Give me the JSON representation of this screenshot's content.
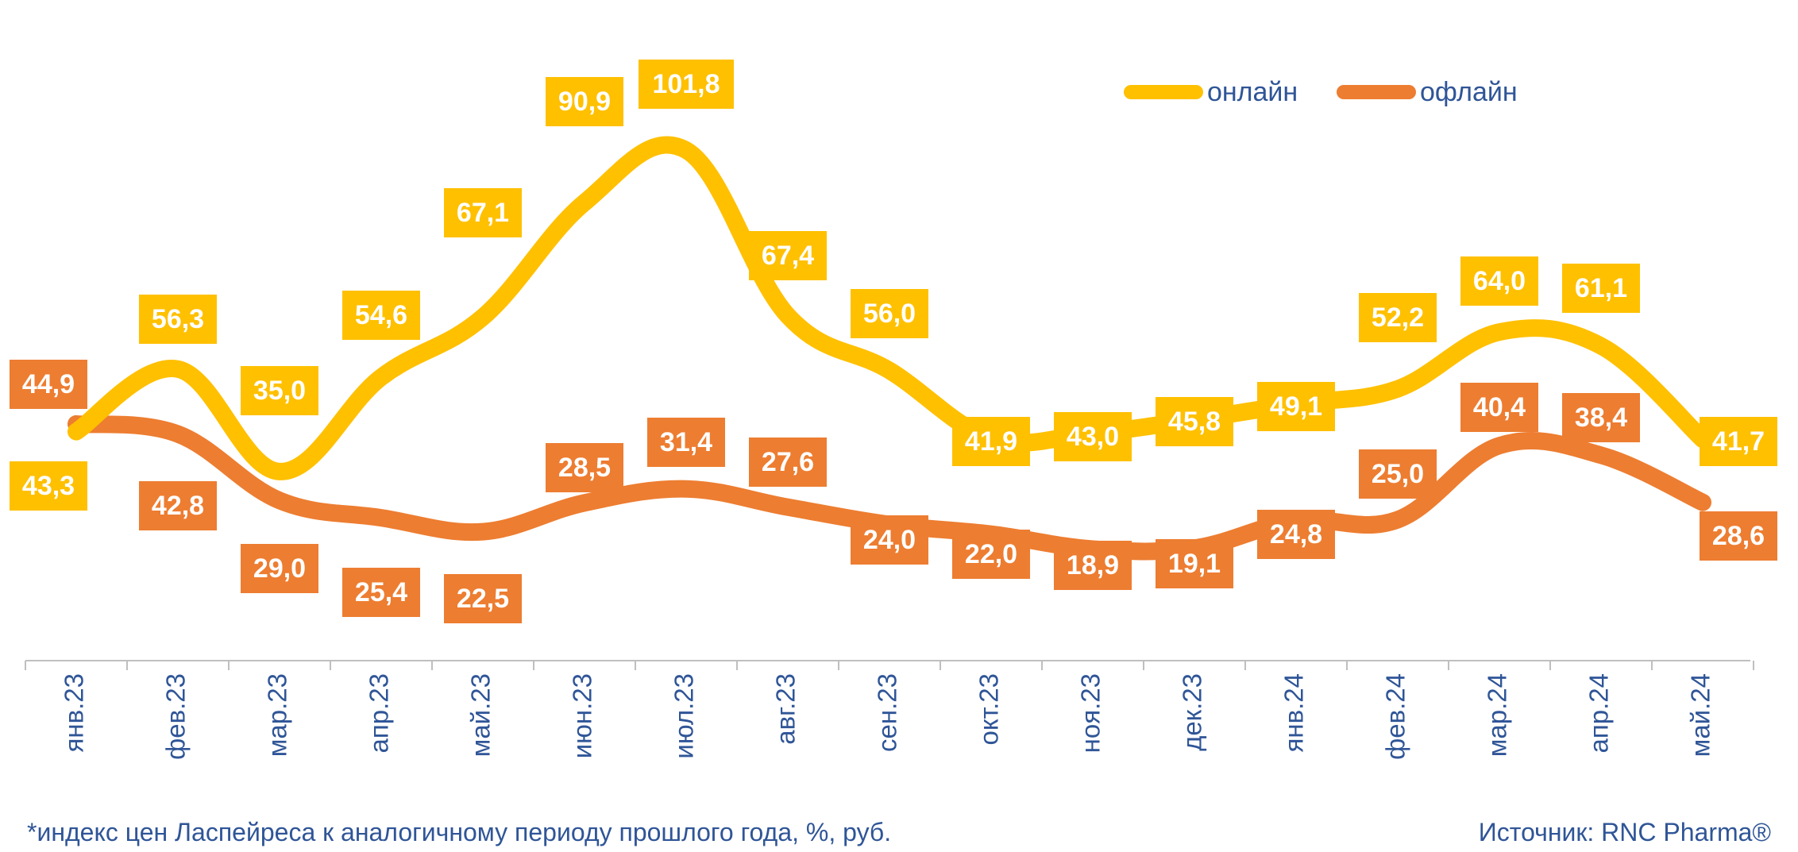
{
  "chart_data": {
    "type": "line",
    "categories": [
      "янв.23",
      "фев.23",
      "мар.23",
      "апр.23",
      "май.23",
      "июн.23",
      "июл.23",
      "авг.23",
      "сен.23",
      "окт.23",
      "ноя.23",
      "дек.23",
      "янв.24",
      "фев.24",
      "мар.24",
      "апр.24",
      "май.24"
    ],
    "series": [
      {
        "name": "онлайн",
        "color": "#FFC000",
        "values": [
          43.3,
          56.3,
          35.0,
          54.6,
          67.1,
          90.9,
          101.8,
          67.4,
          56.0,
          41.9,
          43.0,
          45.8,
          49.1,
          52.2,
          64.0,
          61.1,
          41.7
        ],
        "labels": [
          "43,3",
          "56,3",
          "35,0",
          "54,6",
          "67,1",
          "90,9",
          "101,8",
          "67,4",
          "56,0",
          "41,9",
          "43,0",
          "45,8",
          "49,1",
          "52,2",
          "64,0",
          "61,1",
          "41,7"
        ]
      },
      {
        "name": "офлайн",
        "color": "#ED7D31",
        "values": [
          44.9,
          42.8,
          29.0,
          25.4,
          22.5,
          28.5,
          31.4,
          27.6,
          24.0,
          22.0,
          18.9,
          19.1,
          24.8,
          25.0,
          40.4,
          38.4,
          28.6
        ],
        "labels": [
          "44,9",
          "42,8",
          "29,0",
          "25,4",
          "22,5",
          "28,5",
          "31,4",
          "27,6",
          "24,0",
          "22,0",
          "18,9",
          "19,1",
          "24,8",
          "25,0",
          "40,4",
          "38,4",
          "28,6"
        ]
      }
    ],
    "legend_position": "top-right",
    "grid": false,
    "label_text_colors": {
      "онлайн": "#ffffff",
      "офлайн": "#ffffff"
    }
  },
  "footer": {
    "note": "*индекс цен Ласпейреса к аналогичному периоду прошлого года, %, руб.",
    "source": "Источник: RNC Pharma®"
  }
}
